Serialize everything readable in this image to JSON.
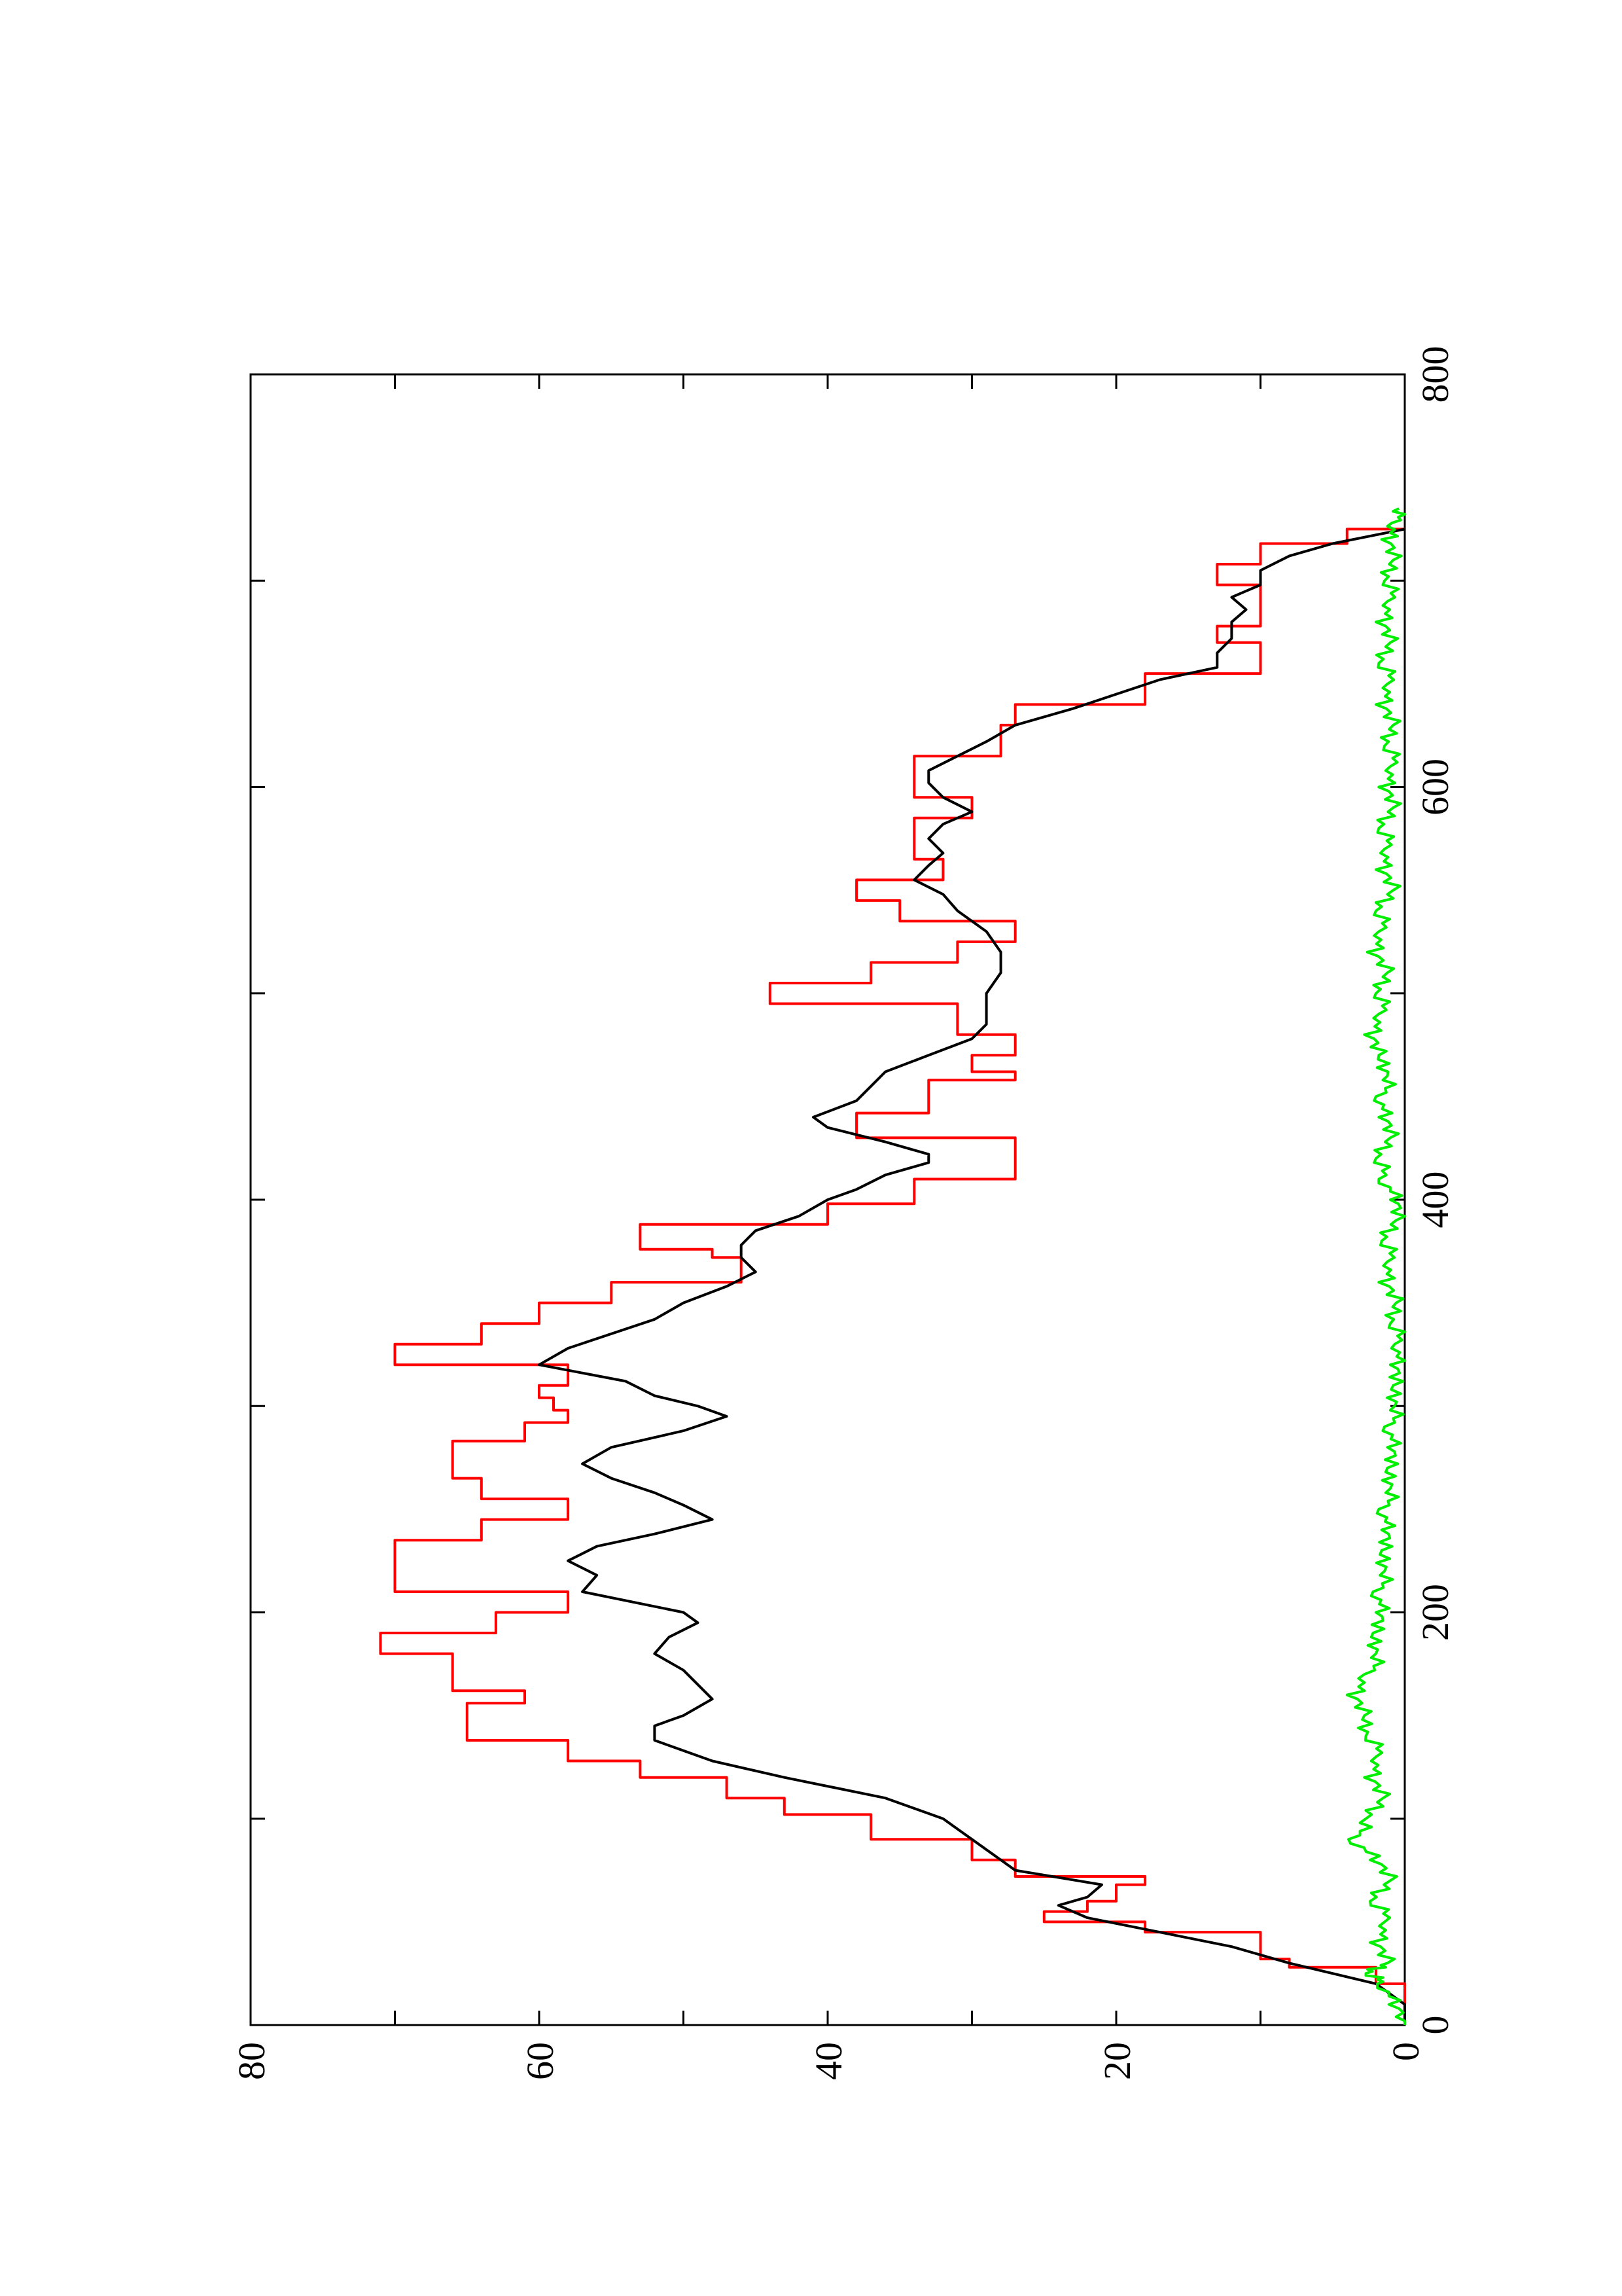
{
  "chart_data": {
    "type": "line",
    "orientation": "rotated-90-ccw",
    "x_range": [
      0,
      800
    ],
    "y_range": [
      0,
      80
    ],
    "x_ticks": [
      "0",
      "200",
      "400",
      "600",
      "800"
    ],
    "y_ticks": [
      "0",
      "20",
      "40",
      "60",
      "80"
    ],
    "grid": false,
    "legend": "none",
    "title": "",
    "xlabel": "",
    "ylabel": "",
    "series": [
      {
        "color": "#ff0000",
        "shape": "step",
        "points": [
          [
            0,
            0
          ],
          [
            8,
            0
          ],
          [
            20,
            2
          ],
          [
            28,
            8
          ],
          [
            32,
            10
          ],
          [
            45,
            18
          ],
          [
            50,
            25
          ],
          [
            55,
            22
          ],
          [
            60,
            20
          ],
          [
            68,
            18
          ],
          [
            72,
            27
          ],
          [
            80,
            30
          ],
          [
            90,
            37
          ],
          [
            102,
            43
          ],
          [
            110,
            47
          ],
          [
            120,
            53
          ],
          [
            128,
            58
          ],
          [
            138,
            65
          ],
          [
            142,
            65
          ],
          [
            156,
            61
          ],
          [
            162,
            66
          ],
          [
            170,
            66
          ],
          [
            180,
            71
          ],
          [
            190,
            63
          ],
          [
            200,
            58
          ],
          [
            210,
            70
          ],
          [
            225,
            70
          ],
          [
            235,
            64
          ],
          [
            245,
            58
          ],
          [
            255,
            64
          ],
          [
            265,
            66
          ],
          [
            275,
            66
          ],
          [
            283,
            61
          ],
          [
            292,
            58
          ],
          [
            298,
            59
          ],
          [
            304,
            60
          ],
          [
            310,
            58
          ],
          [
            320,
            70
          ],
          [
            330,
            64
          ],
          [
            340,
            60
          ],
          [
            350,
            55
          ],
          [
            360,
            46
          ],
          [
            372,
            48
          ],
          [
            376,
            53
          ],
          [
            388,
            40
          ],
          [
            398,
            34
          ],
          [
            410,
            27
          ],
          [
            415,
            27
          ],
          [
            430,
            38
          ],
          [
            442,
            33
          ],
          [
            450,
            33
          ],
          [
            458,
            27
          ],
          [
            462,
            30
          ],
          [
            470,
            27
          ],
          [
            480,
            31
          ],
          [
            495,
            44
          ],
          [
            505,
            37
          ],
          [
            515,
            31
          ],
          [
            525,
            27
          ],
          [
            535,
            35
          ],
          [
            545,
            38
          ],
          [
            555,
            32
          ],
          [
            565,
            34
          ],
          [
            575,
            34
          ],
          [
            585,
            30
          ],
          [
            595,
            34
          ],
          [
            605,
            34
          ],
          [
            615,
            28
          ],
          [
            630,
            27
          ],
          [
            640,
            18
          ],
          [
            650,
            18
          ],
          [
            655,
            10
          ],
          [
            665,
            10
          ],
          [
            670,
            13
          ],
          [
            678,
            10
          ],
          [
            690,
            10
          ],
          [
            698,
            13
          ],
          [
            705,
            13
          ],
          [
            708,
            10
          ],
          [
            718,
            4
          ],
          [
            725,
            0
          ]
        ]
      },
      {
        "color": "#000000",
        "shape": "line",
        "points": [
          [
            0,
            0
          ],
          [
            10,
            0
          ],
          [
            20,
            2
          ],
          [
            30,
            8
          ],
          [
            38,
            12
          ],
          [
            45,
            17
          ],
          [
            52,
            22
          ],
          [
            58,
            24
          ],
          [
            62,
            22
          ],
          [
            68,
            21
          ],
          [
            75,
            27
          ],
          [
            80,
            28
          ],
          [
            90,
            30
          ],
          [
            100,
            32
          ],
          [
            110,
            36
          ],
          [
            120,
            43
          ],
          [
            128,
            48
          ],
          [
            138,
            52
          ],
          [
            145,
            52
          ],
          [
            150,
            50
          ],
          [
            158,
            48
          ],
          [
            165,
            49
          ],
          [
            172,
            50
          ],
          [
            180,
            52
          ],
          [
            188,
            51
          ],
          [
            195,
            49
          ],
          [
            200,
            50
          ],
          [
            210,
            57
          ],
          [
            218,
            56
          ],
          [
            225,
            58
          ],
          [
            232,
            56
          ],
          [
            238,
            52
          ],
          [
            245,
            48
          ],
          [
            252,
            50
          ],
          [
            258,
            52
          ],
          [
            265,
            55
          ],
          [
            272,
            57
          ],
          [
            280,
            55
          ],
          [
            288,
            50
          ],
          [
            295,
            47
          ],
          [
            300,
            49
          ],
          [
            305,
            52
          ],
          [
            312,
            54
          ],
          [
            320,
            60
          ],
          [
            328,
            58
          ],
          [
            335,
            55
          ],
          [
            342,
            52
          ],
          [
            350,
            50
          ],
          [
            358,
            47
          ],
          [
            365,
            45
          ],
          [
            372,
            46
          ],
          [
            378,
            46
          ],
          [
            385,
            45
          ],
          [
            392,
            42
          ],
          [
            400,
            40
          ],
          [
            405,
            38
          ],
          [
            412,
            36
          ],
          [
            418,
            33
          ],
          [
            422,
            33
          ],
          [
            428,
            36
          ],
          [
            435,
            40
          ],
          [
            440,
            41
          ],
          [
            448,
            38
          ],
          [
            455,
            37
          ],
          [
            462,
            36
          ],
          [
            470,
            33
          ],
          [
            478,
            30
          ],
          [
            485,
            29
          ],
          [
            492,
            29
          ],
          [
            500,
            29
          ],
          [
            510,
            28
          ],
          [
            520,
            28
          ],
          [
            530,
            29
          ],
          [
            540,
            31
          ],
          [
            548,
            32
          ],
          [
            555,
            34
          ],
          [
            562,
            33
          ],
          [
            568,
            32
          ],
          [
            575,
            33
          ],
          [
            582,
            32
          ],
          [
            588,
            30
          ],
          [
            595,
            32
          ],
          [
            602,
            33
          ],
          [
            608,
            33
          ],
          [
            615,
            31
          ],
          [
            622,
            29
          ],
          [
            630,
            27
          ],
          [
            638,
            23
          ],
          [
            645,
            20
          ],
          [
            652,
            17
          ],
          [
            658,
            13
          ],
          [
            665,
            13
          ],
          [
            672,
            12
          ],
          [
            680,
            12
          ],
          [
            686,
            11
          ],
          [
            692,
            12
          ],
          [
            698,
            10
          ],
          [
            705,
            10
          ],
          [
            712,
            8
          ],
          [
            718,
            5
          ],
          [
            725,
            0
          ]
        ]
      },
      {
        "color": "#00ee00",
        "shape": "noisy-line",
        "points": [
          [
            0,
            0
          ],
          [
            10,
            0.5
          ],
          [
            20,
            1.5
          ],
          [
            25,
            2.5
          ],
          [
            30,
            1.2
          ],
          [
            40,
            1.8
          ],
          [
            50,
            1.0
          ],
          [
            60,
            2.2
          ],
          [
            70,
            1.0
          ],
          [
            80,
            1.8
          ],
          [
            90,
            3.5
          ],
          [
            100,
            2.5
          ],
          [
            110,
            1.5
          ],
          [
            120,
            2.2
          ],
          [
            130,
            1.6
          ],
          [
            140,
            2.5
          ],
          [
            150,
            2.8
          ],
          [
            160,
            3.4
          ],
          [
            170,
            2.4
          ],
          [
            180,
            1.8
          ],
          [
            190,
            2.2
          ],
          [
            200,
            1.4
          ],
          [
            210,
            1.8
          ],
          [
            220,
            1.2
          ],
          [
            230,
            1.6
          ],
          [
            240,
            1.0
          ],
          [
            250,
            1.4
          ],
          [
            260,
            0.8
          ],
          [
            270,
            1.2
          ],
          [
            280,
            0.6
          ],
          [
            290,
            1.0
          ],
          [
            300,
            0.5
          ],
          [
            310,
            0.8
          ],
          [
            320,
            0.4
          ],
          [
            330,
            0.3
          ],
          [
            340,
            0.8
          ],
          [
            350,
            0.6
          ],
          [
            360,
            1.2
          ],
          [
            370,
            0.8
          ],
          [
            380,
            1.4
          ],
          [
            390,
            0.6
          ],
          [
            400,
            0.4
          ],
          [
            410,
            1.4
          ],
          [
            420,
            1.8
          ],
          [
            430,
            1.0
          ],
          [
            440,
            1.2
          ],
          [
            450,
            1.6
          ],
          [
            460,
            1.0
          ],
          [
            470,
            1.8
          ],
          [
            480,
            2.2
          ],
          [
            490,
            1.4
          ],
          [
            500,
            1.8
          ],
          [
            510,
            1.2
          ],
          [
            520,
            2.0
          ],
          [
            530,
            1.4
          ],
          [
            540,
            1.8
          ],
          [
            550,
            0.8
          ],
          [
            560,
            1.4
          ],
          [
            570,
            1.0
          ],
          [
            580,
            1.6
          ],
          [
            590,
            0.8
          ],
          [
            600,
            1.2
          ],
          [
            610,
            0.6
          ],
          [
            620,
            1.2
          ],
          [
            630,
            0.8
          ],
          [
            640,
            1.4
          ],
          [
            650,
            0.8
          ],
          [
            660,
            1.6
          ],
          [
            670,
            1.0
          ],
          [
            680,
            1.4
          ],
          [
            690,
            0.8
          ],
          [
            700,
            1.2
          ],
          [
            710,
            0.8
          ],
          [
            720,
            1.0
          ],
          [
            728,
            0.5
          ],
          [
            735,
            0.4
          ]
        ]
      }
    ]
  }
}
